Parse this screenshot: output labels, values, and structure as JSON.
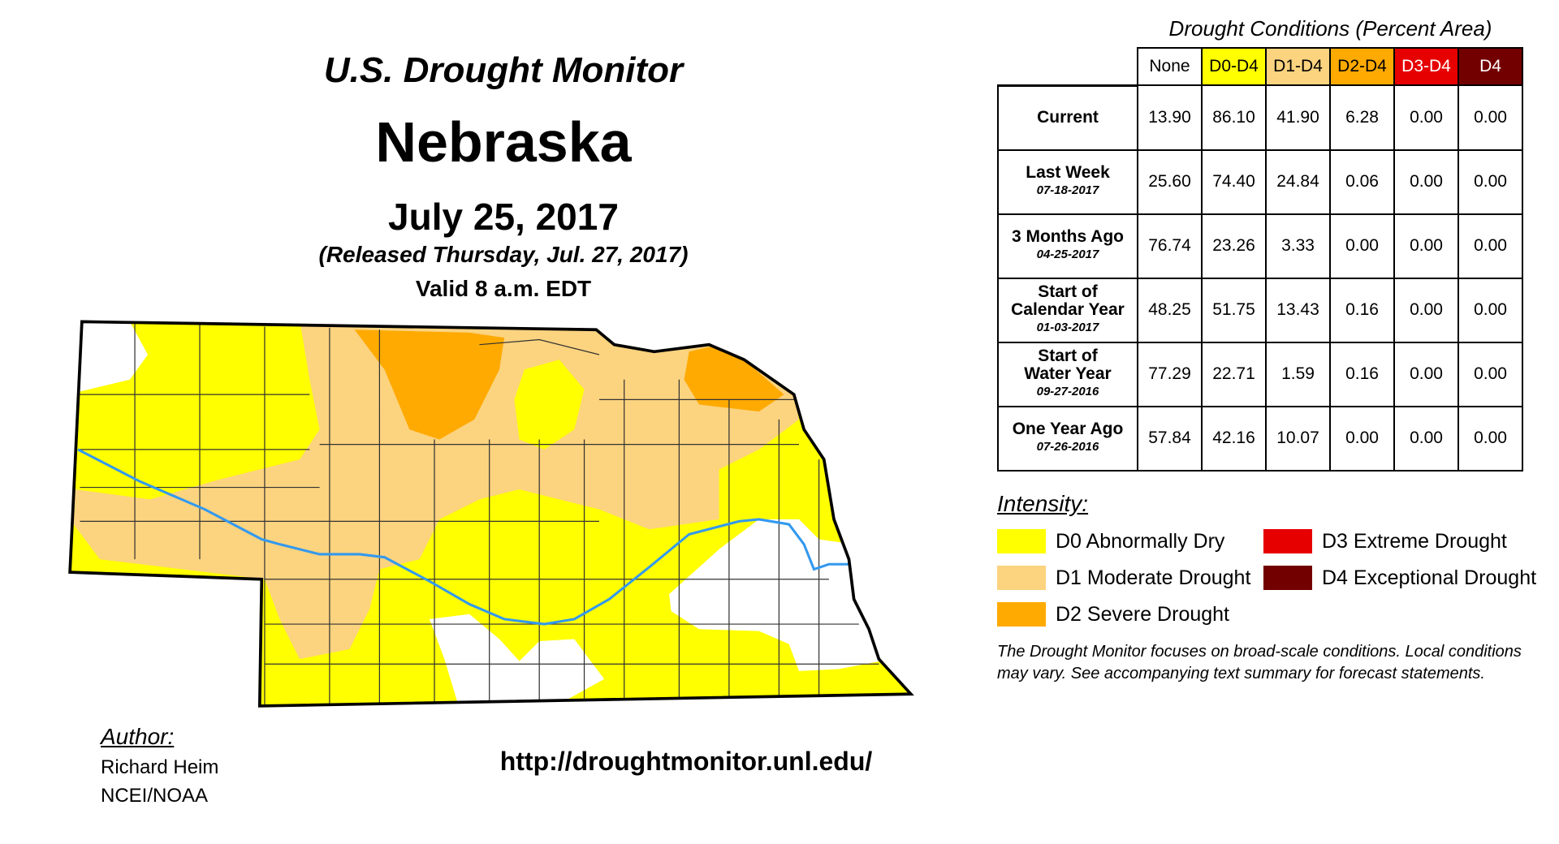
{
  "header": {
    "title": "U.S. Drought Monitor",
    "state": "Nebraska",
    "date": "July 25, 2017",
    "released": "(Released Thursday, Jul. 27, 2017)",
    "valid": "Valid 8 a.m. EDT"
  },
  "colors": {
    "none": "#FFFFFF",
    "D0": "#FFFF00",
    "D1": "#FCD37F",
    "D2": "#FFAA00",
    "D3": "#E60000",
    "D4": "#730000",
    "river": "#3399EE"
  },
  "table": {
    "title": "Drought Conditions (Percent Area)",
    "columns": [
      {
        "label": "None",
        "bg": "#FFFFFF",
        "fg": "#000000"
      },
      {
        "label": "D0-D4",
        "bg": "#FFFF00",
        "fg": "#000000"
      },
      {
        "label": "D1-D4",
        "bg": "#FCD37F",
        "fg": "#000000"
      },
      {
        "label": "D2-D4",
        "bg": "#FFAA00",
        "fg": "#000000"
      },
      {
        "label": "D3-D4",
        "bg": "#E60000",
        "fg": "#FFFFFF"
      },
      {
        "label": "D4",
        "bg": "#730000",
        "fg": "#FFFFFF"
      }
    ],
    "rows": [
      {
        "label": [
          "Current"
        ],
        "date": "",
        "values": [
          "13.90",
          "86.10",
          "41.90",
          "6.28",
          "0.00",
          "0.00"
        ]
      },
      {
        "label": [
          "Last Week"
        ],
        "date": "07-18-2017",
        "values": [
          "25.60",
          "74.40",
          "24.84",
          "0.06",
          "0.00",
          "0.00"
        ]
      },
      {
        "label": [
          "3 Months Ago"
        ],
        "date": "04-25-2017",
        "values": [
          "76.74",
          "23.26",
          "3.33",
          "0.00",
          "0.00",
          "0.00"
        ]
      },
      {
        "label": [
          "Start of",
          "Calendar Year"
        ],
        "date": "01-03-2017",
        "values": [
          "48.25",
          "51.75",
          "13.43",
          "0.16",
          "0.00",
          "0.00"
        ]
      },
      {
        "label": [
          "Start of",
          "Water Year"
        ],
        "date": "09-27-2016",
        "values": [
          "77.29",
          "22.71",
          "1.59",
          "0.16",
          "0.00",
          "0.00"
        ]
      },
      {
        "label": [
          "One Year Ago"
        ],
        "date": "07-26-2016",
        "values": [
          "57.84",
          "42.16",
          "10.07",
          "0.00",
          "0.00",
          "0.00"
        ]
      }
    ]
  },
  "legend": {
    "title": "Intensity:",
    "items": [
      {
        "label": "D0 Abnormally Dry",
        "color": "#FFFF00"
      },
      {
        "label": "D1 Moderate Drought",
        "color": "#FCD37F"
      },
      {
        "label": "D2 Severe Drought",
        "color": "#FFAA00"
      },
      {
        "label": "D3 Extreme Drought",
        "color": "#E60000"
      },
      {
        "label": "D4 Exceptional Drought",
        "color": "#730000"
      }
    ],
    "note": "The Drought Monitor focuses on broad-scale conditions. Local conditions may vary. See accompanying text summary for forecast statements."
  },
  "author": {
    "heading": "Author:",
    "name": "Richard Heim",
    "org": "NCEI/NOAA"
  },
  "url": "http://droughtmonitor.unl.edu/"
}
